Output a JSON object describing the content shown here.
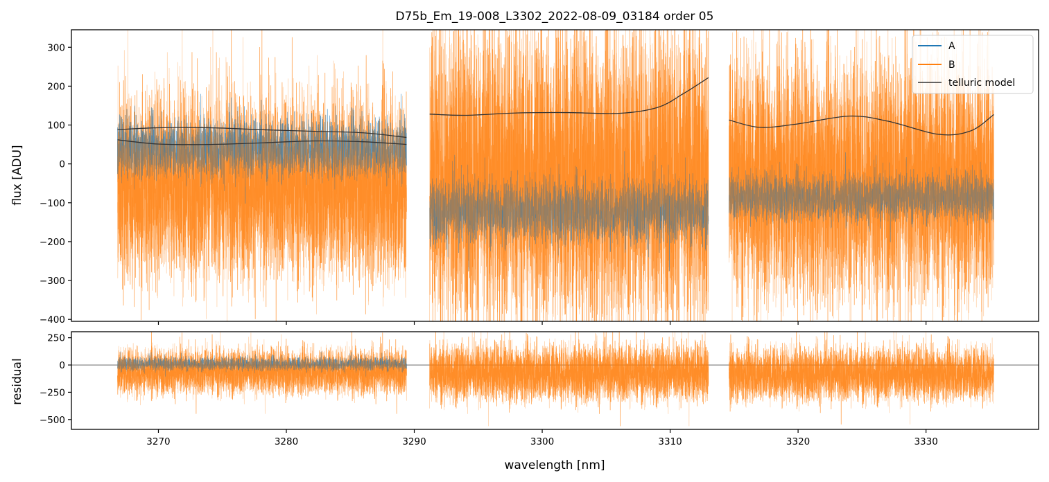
{
  "chart_data": [
    {
      "type": "line",
      "panel": "main",
      "title": "D75b_Em_19-008_L3302_2022-08-09_03184  order 05",
      "xlabel": "",
      "ylabel": "flux [ADU]",
      "xlim": [
        3263.2,
        3338.8
      ],
      "ylim": [
        -405,
        345
      ],
      "yticks": [
        300,
        200,
        100,
        0,
        -100,
        -200,
        -300,
        -400
      ],
      "ytick_labels": [
        "300",
        "200",
        "100",
        "0",
        "−100",
        "−200",
        "−300",
        "−400"
      ],
      "xticks": [
        3270,
        3280,
        3290,
        3300,
        3310,
        3320,
        3330
      ],
      "legend": {
        "placement": "top-right",
        "entries": [
          "A",
          "B",
          "telluric model"
        ]
      },
      "segments": [
        {
          "x_range": [
            3266.8,
            3289.4
          ],
          "A_center": 40,
          "A_noise": 55,
          "B_center": -60,
          "B_noise": 170
        },
        {
          "x_range": [
            3291.2,
            3313.0
          ],
          "A_center": -120,
          "A_noise": 60,
          "B_center": -30,
          "B_noise": 280
        },
        {
          "x_range": [
            3314.6,
            3335.3
          ],
          "A_center": -85,
          "A_noise": 45,
          "B_center": -40,
          "B_noise": 230
        }
      ],
      "series": [
        {
          "name": "A",
          "color": "#1f77b4"
        },
        {
          "name": "B",
          "color": "#ff7f0e"
        },
        {
          "name": "telluric model",
          "color": "#333333",
          "curves": [
            {
              "x": [
                3266.8,
                3270,
                3274,
                3278,
                3282,
                3286,
                3289.4
              ],
              "y": [
                88,
                93,
                93,
                88,
                84,
                80,
                68
              ]
            },
            {
              "x": [
                3266.8,
                3270,
                3274,
                3278,
                3282,
                3286,
                3289.4
              ],
              "y": [
                62,
                51,
                50,
                54,
                59,
                57,
                50
              ]
            },
            {
              "x": [
                3291.2,
                3294,
                3298,
                3302,
                3306,
                3309,
                3311,
                3313.0
              ],
              "y": [
                128,
                125,
                131,
                132,
                130,
                145,
                180,
                222
              ]
            },
            {
              "x": [
                3314.6,
                3317,
                3320,
                3324,
                3327,
                3331,
                3333.5,
                3335.3
              ],
              "y": [
                113,
                94,
                103,
                123,
                110,
                76,
                85,
                127
              ]
            }
          ]
        }
      ]
    },
    {
      "type": "line",
      "panel": "residual",
      "title": "",
      "xlabel": "wavelength [nm]",
      "ylabel": "residual",
      "xlim": [
        3263.2,
        3338.8
      ],
      "ylim": [
        -590,
        305
      ],
      "yticks": [
        250,
        0,
        -250,
        -500
      ],
      "ytick_labels": [
        "250",
        "0",
        "−250",
        "−500"
      ],
      "xticks": [
        3270,
        3280,
        3290,
        3300,
        3310,
        3320,
        3330
      ],
      "xtick_labels": [
        "3270",
        "3280",
        "3290",
        "3300",
        "3310",
        "3320",
        "3330"
      ],
      "zero_line": 0,
      "segments": [
        {
          "x_range": [
            3266.8,
            3289.4
          ],
          "A_center": 10,
          "A_noise": 45,
          "B_center": -60,
          "B_noise": 150
        },
        {
          "x_range": [
            3291.2,
            3313.0
          ],
          "A_center": null,
          "A_noise": 0,
          "B_center": -70,
          "B_noise": 190
        },
        {
          "x_range": [
            3314.6,
            3335.3
          ],
          "A_center": null,
          "A_noise": 0,
          "B_center": -80,
          "B_noise": 180
        }
      ],
      "series": [
        {
          "name": "A",
          "color": "#1f77b4"
        },
        {
          "name": "B",
          "color": "#ff7f0e"
        }
      ]
    }
  ]
}
